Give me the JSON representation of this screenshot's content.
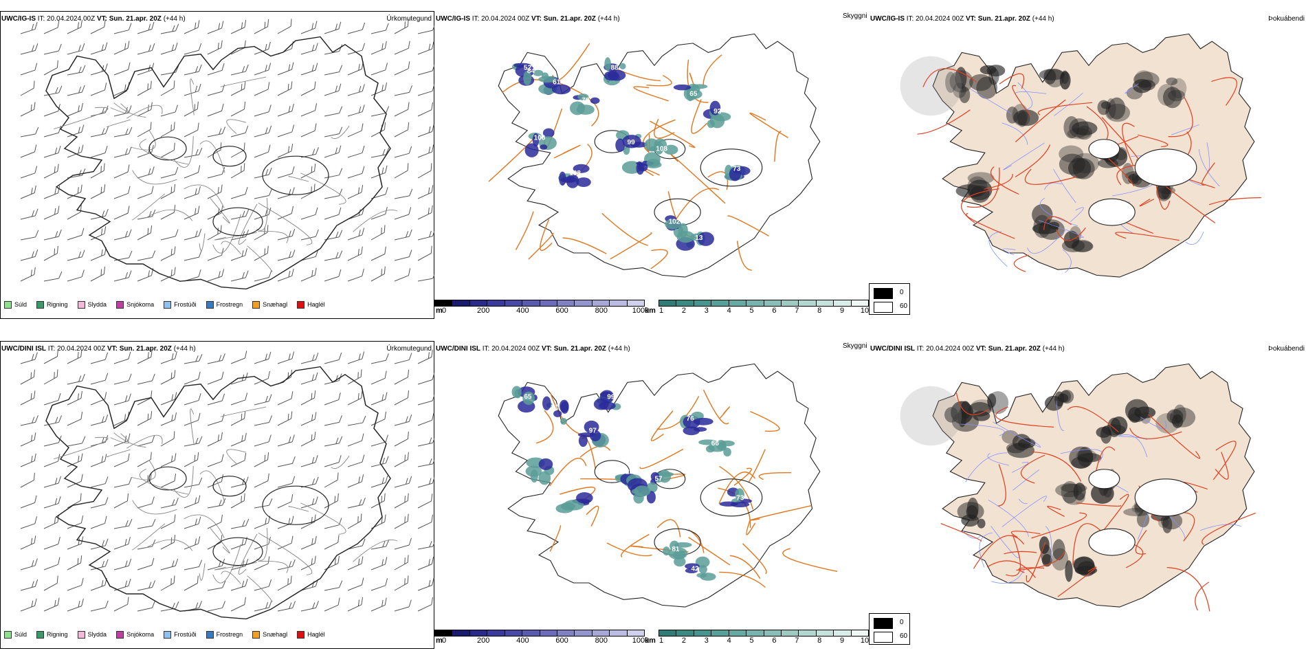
{
  "rows": [
    {
      "model": "UWC/IG-IS",
      "it_label": "IT:",
      "it_value": "20.04.2024 00Z",
      "vt_label": "VT:",
      "vt_value": "Sun. 21.apr. 20Z",
      "lead": "(+44 h)"
    },
    {
      "model": "UWC/DINI ISL",
      "it_label": "IT:",
      "it_value": "20.04.2024 00Z",
      "vt_label": "VT:",
      "vt_value": "Sun. 21.apr. 20Z",
      "lead": "(+44 h)"
    }
  ],
  "panel_titles": {
    "precip": "Úrkomutegund",
    "visibility": "Skyggni",
    "fog": "Þokuábendi"
  },
  "precip_legend": [
    {
      "label": "Súld",
      "color": "#8ee08e"
    },
    {
      "label": "Rigning",
      "color": "#3a9a6a"
    },
    {
      "label": "Slydda",
      "color": "#f4b8d8"
    },
    {
      "label": "Snjókoma",
      "color": "#c040a0"
    },
    {
      "label": "Frostúði",
      "color": "#90c0f0"
    },
    {
      "label": "Frostregn",
      "color": "#3a78c0"
    },
    {
      "label": "Snæhagl",
      "color": "#f0a020"
    },
    {
      "label": "Haglél",
      "color": "#e01010"
    }
  ],
  "ceiling_bar": {
    "unit": "m",
    "ticks": [
      "0",
      "200",
      "400",
      "600",
      "800",
      "1000"
    ],
    "colors": [
      "#000000",
      "#1a1a6e",
      "#2a2a8a",
      "#3a3a9e",
      "#4848a8",
      "#5a5ab0",
      "#6c6cba",
      "#8080c4",
      "#9494ce",
      "#a8a8d8",
      "#bcbce2",
      "#d0d0ec"
    ]
  },
  "visibility_bar": {
    "unit": "km",
    "ticks": [
      "1",
      "2",
      "3",
      "4",
      "5",
      "6",
      "7",
      "8",
      "9",
      "10"
    ],
    "colors": [
      "#2e7d78",
      "#3a8a84",
      "#469590",
      "#55a09a",
      "#66aaa4",
      "#78b4ae",
      "#8abfb9",
      "#9ecac4",
      "#b2d6d0",
      "#c6e2dc",
      "#daeee9",
      "#eef8f5"
    ]
  },
  "fog_legend": [
    {
      "label": "0",
      "color": "#000000"
    },
    {
      "label": "60",
      "color": "#ffffff"
    }
  ],
  "map_labels": {
    "row0": [
      "52",
      "61",
      "76",
      "88",
      "99",
      "108",
      "65",
      "92",
      "73",
      "102",
      "13",
      "106",
      "108",
      "76",
      "84"
    ],
    "row1": [
      "65",
      "81",
      "97",
      "99",
      "23",
      "57",
      "76",
      "66",
      "73",
      "81",
      "42"
    ]
  },
  "colors": {
    "coast": "#222222",
    "roads": "#e07820",
    "roads_fog": "#e04020",
    "rivers": "#8090ff",
    "land_fog": "#f2e2d2"
  }
}
